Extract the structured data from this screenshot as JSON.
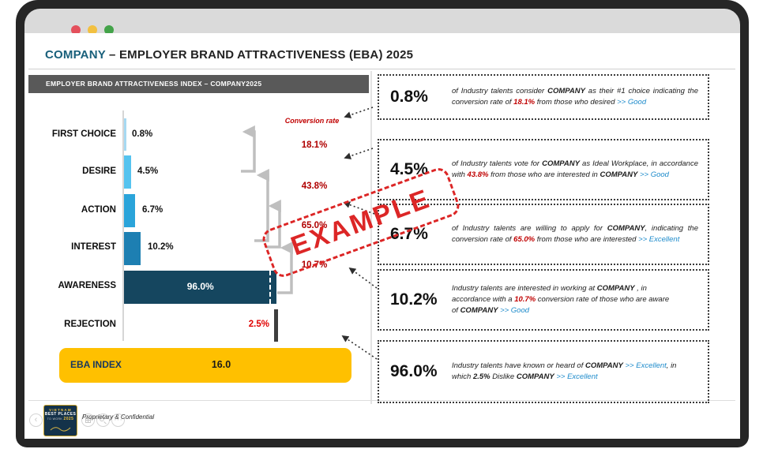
{
  "window": {
    "controls": [
      "close",
      "minimize",
      "fullscreen"
    ]
  },
  "slide": {
    "title_accent": "COMPANY",
    "title_rest": " – EMPLOYER BRAND ATTRACTIVENESS (EBA) 2025",
    "header_bar": "EMPLOYER BRAND ATTRACTIVENESS INDEX – COMPANY2025"
  },
  "chart_data": {
    "type": "bar",
    "orientation": "horizontal",
    "title": "EMPLOYER BRAND ATTRACTIVENESS INDEX – COMPANY2025",
    "categories": [
      "FIRST CHOICE",
      "DESIRE",
      "ACTION",
      "INTEREST",
      "AWARENESS",
      "REJECTION"
    ],
    "values": [
      0.8,
      4.5,
      6.7,
      10.2,
      96.0,
      2.5
    ],
    "value_labels": [
      "0.8%",
      "4.5%",
      "6.7%",
      "10.2%",
      "96.0%",
      "2.5%"
    ],
    "xlim": [
      0,
      100
    ],
    "bar_colors": [
      "#a6d9f2",
      "#55c3ef",
      "#2aa4da",
      "#1d7fb2",
      "#15465f",
      "#3e3e3e"
    ],
    "conversion_label": "Conversion rate",
    "conversion_rates": [
      "18.1%",
      "43.8%",
      "65.0%",
      "10.7%"
    ],
    "conversion_pairs": [
      [
        "DESIRE",
        "FIRST CHOICE"
      ],
      [
        "INTEREST",
        "DESIRE"
      ],
      [
        "INTEREST",
        "ACTION"
      ],
      [
        "AWARENESS",
        "INTEREST"
      ]
    ],
    "eba_index": {
      "label": "EBA INDEX",
      "value": "16.0"
    }
  },
  "annotations": [
    {
      "pct": "0.8%",
      "segments": [
        {
          "s": "i",
          "t": "of Industry talents consider "
        },
        {
          "s": "b",
          "t": "COMPANY"
        },
        {
          "s": "i",
          "t": " as their #1 choice indicating the conversion rate of "
        },
        {
          "s": "red",
          "t": "18.1%"
        },
        {
          "s": "i",
          "t": " from those who desired "
        },
        {
          "s": "blue",
          "t": ">> Good"
        }
      ]
    },
    {
      "pct": "4.5%",
      "segments": [
        {
          "s": "i",
          "t": "of Industry talents vote for "
        },
        {
          "s": "b",
          "t": "COMPANY"
        },
        {
          "s": "i",
          "t": " as Ideal Workplace, in accordance with "
        },
        {
          "s": "red",
          "t": "43.8%"
        },
        {
          "s": "i",
          "t": " from those who are interested in "
        },
        {
          "s": "b",
          "t": "COMPANY"
        },
        {
          "s": "i",
          "t": " "
        },
        {
          "s": "blue",
          "t": ">> Good"
        }
      ]
    },
    {
      "pct": "6.7%",
      "segments": [
        {
          "s": "i",
          "t": "of Industry talents are willing to apply for "
        },
        {
          "s": "b",
          "t": "COMPANY"
        },
        {
          "s": "i",
          "t": ", indicating the conversion rate of "
        },
        {
          "s": "red",
          "t": "65.0%"
        },
        {
          "s": "i",
          "t": " from those who are interested "
        },
        {
          "s": "blue",
          "t": ">> Excellent"
        }
      ]
    },
    {
      "pct": "10.2%",
      "segments": [
        {
          "s": "i",
          "t": "Industry talents are interested in working at "
        },
        {
          "s": "b",
          "t": "COMPANY"
        },
        {
          "s": "i",
          "t": " , in accordance with a "
        },
        {
          "s": "red",
          "t": "10.7%"
        },
        {
          "s": "i",
          "t": " conversion rate of those who are aware of "
        },
        {
          "s": "b",
          "t": "COMPANY"
        },
        {
          "s": "i",
          "t": " "
        },
        {
          "s": "blue",
          "t": ">> Good"
        }
      ]
    },
    {
      "pct": "96.0%",
      "segments": [
        {
          "s": "i",
          "t": "Industry talents have known or heard of "
        },
        {
          "s": "b",
          "t": "COMPANY"
        },
        {
          "s": "i",
          "t": " "
        },
        {
          "s": "blue",
          "t": ">> Excellent"
        },
        {
          "s": "i",
          "t": ", in which "
        },
        {
          "s": "b",
          "t": "2.5%"
        },
        {
          "s": "i",
          "t": " Dislike "
        },
        {
          "s": "b",
          "t": "COMPANY"
        },
        {
          "s": "i",
          "t": " "
        },
        {
          "s": "blue",
          "t": ">> Excellent"
        }
      ]
    }
  ],
  "stamp": {
    "text": "EXAMPLE"
  },
  "footer": {
    "confidential": "Proprietary & Confidential",
    "badge": {
      "line1": "VIETNAM",
      "line2": "BEST PLACES",
      "line3": "TO WORK",
      "year": "2025"
    }
  },
  "colors": {
    "title_accent": "#19607b",
    "header_bar": "#595959",
    "eba_bar": "#ffc000",
    "conversion_red": "#c00000",
    "link_blue": "#1e8bcb",
    "stamp_red": "#dc2626"
  }
}
